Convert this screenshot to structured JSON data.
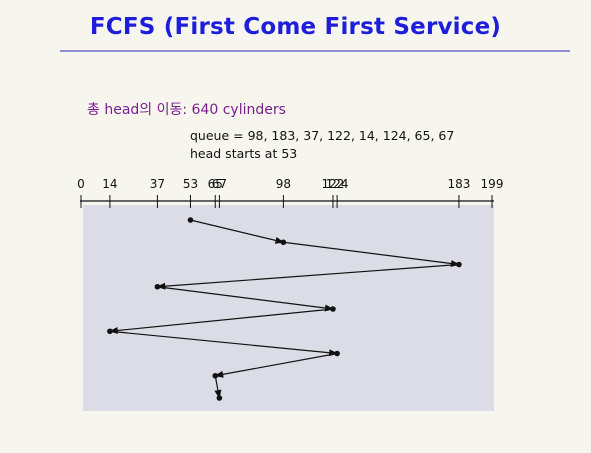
{
  "title": "FCFS (First Come First Service)",
  "total_movement": "총 head의 이동: 640 cylinders",
  "queue_text": "queue = 98, 183, 37, 122, 14, 124, 65, 67",
  "head_start_text": "head starts at 53",
  "colors": {
    "title": "#1d1ddb",
    "rule": "#8f8fd6",
    "total": "#7a1e8e",
    "panel": "#dcdce6"
  },
  "chart_data": {
    "type": "line",
    "axis_ticks": [
      0,
      14,
      37,
      53,
      65,
      67,
      98,
      122,
      124,
      183,
      199
    ],
    "xlim": [
      0,
      199
    ],
    "sequence": [
      53,
      98,
      183,
      37,
      122,
      14,
      124,
      65,
      67
    ]
  }
}
